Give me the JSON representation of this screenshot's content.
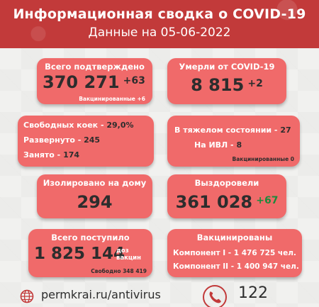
{
  "header": {
    "title": "Информационная сводка о COVID-19",
    "subtitle": "Данные на 05-06-2022"
  },
  "confirmed": {
    "label": "Всего подтверждено",
    "value": "370 271",
    "delta": "+63",
    "note": "Вакцинированные +6"
  },
  "deaths": {
    "label": "Умерли от COVID-19",
    "value": "8 815",
    "delta": "+2"
  },
  "beds": {
    "free_label": "Свободных коек -",
    "free_value": "29,0%",
    "deployed_label": "Развернуто -",
    "deployed_value": "245",
    "occupied_label": "Занято -",
    "occupied_value": "174"
  },
  "severe": {
    "severe_label": "В тяжелом состоянии -",
    "severe_value": "27",
    "ivl_label": "На ИВЛ -",
    "ivl_value": "8",
    "note": "Вакцинированные 0"
  },
  "home_isolation": {
    "label": "Изолировано на дому",
    "value": "294"
  },
  "recovered": {
    "label": "Выздоровели",
    "value": "361 028",
    "delta": "+67"
  },
  "admitted": {
    "label": "Всего поступило",
    "value": "1 825 144",
    "unit": "доз вакцин",
    "note": "Свободно 348 419"
  },
  "vaccinated": {
    "label": "Вакцинированы",
    "comp1": "Компонент I - 1 476 725 чел.",
    "comp2": "Компонент II - 1 400 947 чел."
  },
  "footer": {
    "website": "permkrai.ru/antivirus",
    "phone": "122"
  },
  "colors": {
    "header_red": "#c23a3a",
    "card_red": "#f06a6a",
    "value_dark": "#2d2d2d",
    "delta_green": "#1d8a3c"
  }
}
